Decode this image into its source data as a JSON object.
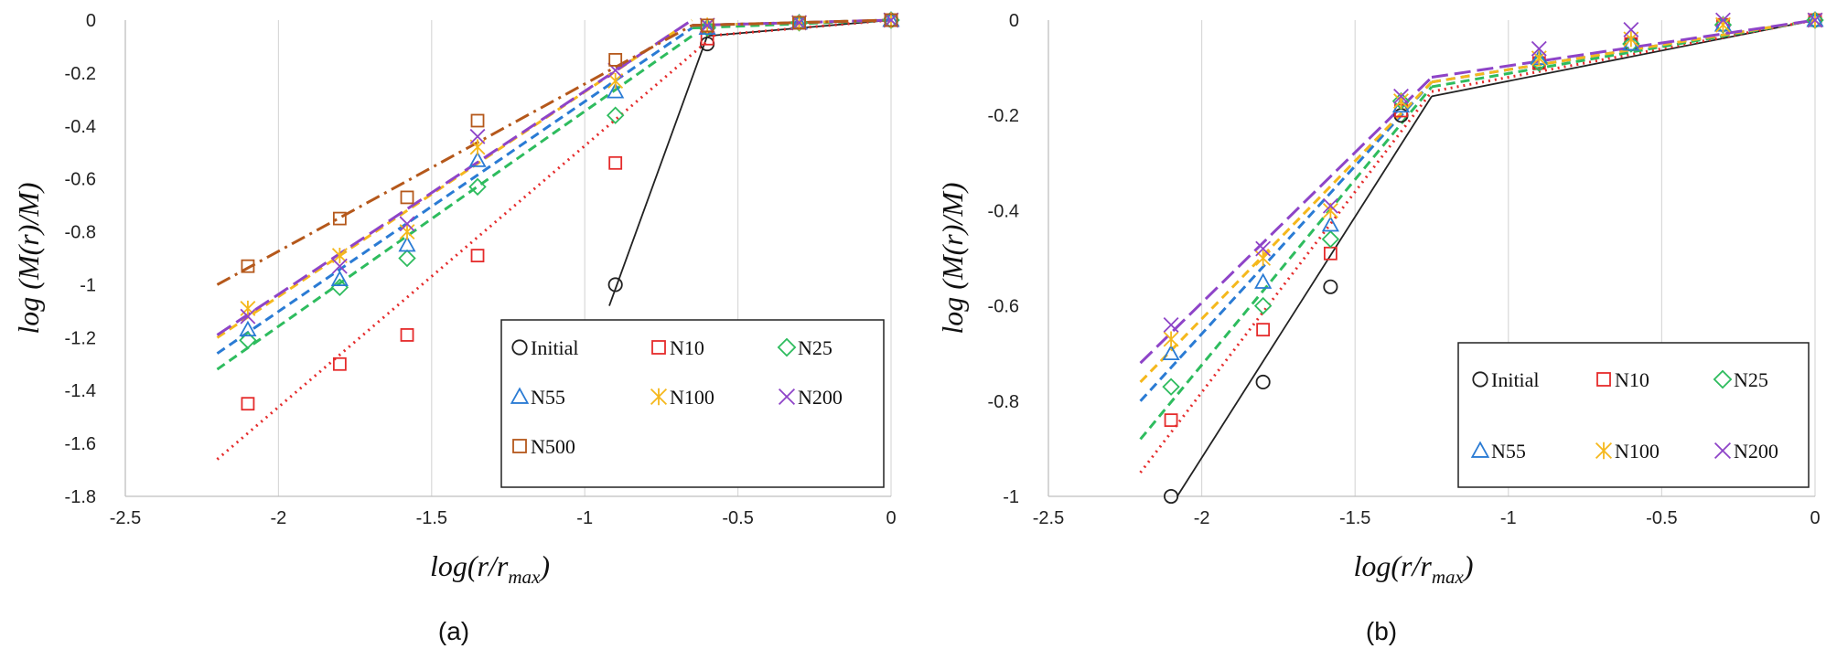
{
  "chart_data": [
    {
      "type": "scatter",
      "caption": "(a)",
      "xlabel": "log(r/r",
      "xlabel_sub": "max",
      "xlabel_tail": ")",
      "ylabel": "log (M(r)/M)",
      "xlim": [
        -2.5,
        0
      ],
      "ylim": [
        -1.8,
        0
      ],
      "xticks": [
        -2.5,
        -2,
        -1.5,
        -1,
        -0.5,
        0
      ],
      "xtick_labels": [
        "-2.5",
        "-2",
        "-1.5",
        "-1",
        "-0.5",
        "0"
      ],
      "yticks": [
        0,
        -0.2,
        -0.4,
        -0.6,
        -0.8,
        -1,
        -1.2,
        -1.4,
        -1.6,
        -1.8
      ],
      "ytick_labels": [
        "0",
        "-0.2",
        "-0.4",
        "-0.6",
        "-0.8",
        "-1",
        "-1.2",
        "-1.4",
        "-1.6",
        "-1.8"
      ],
      "grid": "vertical",
      "legend_position": "lower-right",
      "series": [
        {
          "name": "Initial",
          "color": "#222222",
          "marker": "circle",
          "x": [
            -0.9,
            -0.6,
            0
          ],
          "y": [
            -1.0,
            -0.09,
            0
          ],
          "fits": [
            {
              "x": [
                -0.92,
                -0.6
              ],
              "y": [
                -1.08,
                -0.06
              ],
              "style": "solid"
            },
            {
              "x": [
                -0.6,
                0
              ],
              "y": [
                -0.06,
                0
              ],
              "style": "solid"
            }
          ]
        },
        {
          "name": "N10",
          "color": "#e52b2b",
          "marker": "square",
          "x": [
            -2.1,
            -1.8,
            -1.58,
            -1.35,
            -0.9,
            -0.6,
            -0.3,
            0
          ],
          "y": [
            -1.45,
            -1.3,
            -1.19,
            -0.89,
            -0.54,
            -0.07,
            -0.01,
            0
          ],
          "fits": [
            {
              "x": [
                -2.2,
                -0.6
              ],
              "y": [
                -1.66,
                -0.08
              ],
              "style": "dotted"
            },
            {
              "x": [
                -0.6,
                0
              ],
              "y": [
                -0.06,
                0
              ],
              "style": "dotted"
            }
          ]
        },
        {
          "name": "N25",
          "color": "#2ebc5e",
          "marker": "diamond",
          "x": [
            -2.1,
            -1.8,
            -1.58,
            -1.35,
            -0.9,
            -0.6,
            -0.3,
            0
          ],
          "y": [
            -1.21,
            -1.01,
            -0.9,
            -0.63,
            -0.36,
            -0.03,
            -0.01,
            0
          ],
          "fits": [
            {
              "x": [
                -2.2,
                -0.65
              ],
              "y": [
                -1.32,
                -0.06
              ],
              "style": "dashed"
            },
            {
              "x": [
                -0.65,
                0
              ],
              "y": [
                -0.03,
                0
              ],
              "style": "dashed"
            }
          ]
        },
        {
          "name": "N55",
          "color": "#2a7bd4",
          "marker": "triangle",
          "x": [
            -2.1,
            -1.8,
            -1.58,
            -1.35,
            -0.9,
            -0.6,
            -0.3,
            0
          ],
          "y": [
            -1.17,
            -0.98,
            -0.85,
            -0.53,
            -0.27,
            -0.03,
            -0.01,
            0
          ],
          "fits": [
            {
              "x": [
                -2.2,
                -0.65
              ],
              "y": [
                -1.26,
                -0.03
              ],
              "style": "dashed"
            },
            {
              "x": [
                -0.65,
                0
              ],
              "y": [
                -0.02,
                0
              ],
              "style": "dashed"
            }
          ]
        },
        {
          "name": "N100",
          "color": "#f5b81c",
          "marker": "asterisk",
          "x": [
            -2.1,
            -1.8,
            -1.58,
            -1.35,
            -0.9,
            -0.6,
            -0.3,
            0
          ],
          "y": [
            -1.09,
            -0.89,
            -0.8,
            -0.48,
            -0.23,
            -0.02,
            -0.01,
            0
          ],
          "fits": [
            {
              "x": [
                -2.2,
                -0.65
              ],
              "y": [
                -1.2,
                0.0
              ],
              "style": "dashed"
            },
            {
              "x": [
                -0.65,
                0
              ],
              "y": [
                -0.02,
                0
              ],
              "style": "dashed"
            }
          ]
        },
        {
          "name": "N200",
          "color": "#8e44c8",
          "marker": "cross",
          "x": [
            -2.1,
            -1.8,
            -1.58,
            -1.35,
            -0.9,
            -0.6,
            -0.3,
            0
          ],
          "y": [
            -1.12,
            -0.93,
            -0.77,
            -0.44,
            -0.19,
            -0.02,
            -0.01,
            0
          ],
          "fits": [
            {
              "x": [
                -2.2,
                -0.65
              ],
              "y": [
                -1.19,
                0.0
              ],
              "style": "longdash"
            },
            {
              "x": [
                -0.65,
                0
              ],
              "y": [
                -0.02,
                0
              ],
              "style": "longdash"
            }
          ]
        },
        {
          "name": "N500",
          "color": "#b5581b",
          "marker": "square",
          "x": [
            -2.1,
            -1.8,
            -1.58,
            -1.35,
            -0.9,
            -0.6,
            -0.3,
            0
          ],
          "y": [
            -0.93,
            -0.75,
            -0.67,
            -0.38,
            -0.15,
            -0.02,
            -0.01,
            0
          ],
          "fits": [
            {
              "x": [
                -2.2,
                -0.65
              ],
              "y": [
                -1.0,
                -0.02
              ],
              "style": "dashdot"
            },
            {
              "x": [
                -0.65,
                0
              ],
              "y": [
                -0.02,
                0
              ],
              "style": "dashdot"
            }
          ]
        }
      ]
    },
    {
      "type": "scatter",
      "caption": "(b)",
      "xlabel": "log(r/r",
      "xlabel_sub": "max",
      "xlabel_tail": ")",
      "ylabel": "log (M(r)/M)",
      "xlim": [
        -2.5,
        0
      ],
      "ylim": [
        -1,
        0
      ],
      "xticks": [
        -2.5,
        -2,
        -1.5,
        -1,
        -0.5,
        0
      ],
      "xtick_labels": [
        "-2.5",
        "-2",
        "-1.5",
        "-1",
        "-0.5",
        "0"
      ],
      "yticks": [
        0,
        -0.2,
        -0.4,
        -0.6,
        -0.8,
        -1
      ],
      "ytick_labels": [
        "0",
        "-0.2",
        "-0.4",
        "-0.6",
        "-0.8",
        "-1"
      ],
      "grid": "vertical",
      "legend_position": "lower-right",
      "series": [
        {
          "name": "Initial",
          "color": "#222222",
          "marker": "circle",
          "x": [
            -2.1,
            -1.8,
            -1.58,
            -1.35,
            -0.9,
            -0.6,
            0
          ],
          "y": [
            -1.0,
            -0.76,
            -0.56,
            -0.2,
            -0.09,
            -0.05,
            0
          ],
          "fits": [
            {
              "x": [
                -2.08,
                -1.25
              ],
              "y": [
                -1.0,
                -0.16
              ],
              "style": "solid"
            },
            {
              "x": [
                -1.25,
                0
              ],
              "y": [
                -0.16,
                0
              ],
              "style": "solid"
            }
          ]
        },
        {
          "name": "N10",
          "color": "#e52b2b",
          "marker": "square",
          "x": [
            -2.1,
            -1.8,
            -1.58,
            -1.35,
            -0.9,
            -0.6,
            -0.3,
            0
          ],
          "y": [
            -0.84,
            -0.65,
            -0.49,
            -0.19,
            -0.09,
            -0.05,
            -0.01,
            0
          ],
          "fits": [
            {
              "x": [
                -2.2,
                -1.25
              ],
              "y": [
                -0.95,
                -0.15
              ],
              "style": "dotted"
            },
            {
              "x": [
                -1.25,
                0
              ],
              "y": [
                -0.15,
                0
              ],
              "style": "dotted"
            }
          ]
        },
        {
          "name": "N25",
          "color": "#2ebc5e",
          "marker": "diamond",
          "x": [
            -2.1,
            -1.8,
            -1.58,
            -1.35,
            -0.9,
            -0.6,
            -0.3,
            0
          ],
          "y": [
            -0.77,
            -0.6,
            -0.46,
            -0.17,
            -0.09,
            -0.05,
            -0.01,
            0
          ],
          "fits": [
            {
              "x": [
                -2.2,
                -1.25
              ],
              "y": [
                -0.88,
                -0.14
              ],
              "style": "dashed"
            },
            {
              "x": [
                -1.25,
                0
              ],
              "y": [
                -0.14,
                0
              ],
              "style": "dashed"
            }
          ]
        },
        {
          "name": "N55",
          "color": "#2a7bd4",
          "marker": "triangle",
          "x": [
            -2.1,
            -1.8,
            -1.58,
            -1.35,
            -0.9,
            -0.6,
            -0.3,
            0
          ],
          "y": [
            -0.7,
            -0.55,
            -0.43,
            -0.18,
            -0.08,
            -0.05,
            -0.01,
            0
          ],
          "fits": [
            {
              "x": [
                -2.2,
                -1.25
              ],
              "y": [
                -0.8,
                -0.13
              ],
              "style": "dashed"
            },
            {
              "x": [
                -1.25,
                0
              ],
              "y": [
                -0.13,
                0
              ],
              "style": "dashed"
            }
          ]
        },
        {
          "name": "N100",
          "color": "#f5b81c",
          "marker": "asterisk",
          "x": [
            -2.1,
            -1.8,
            -1.58,
            -1.35,
            -0.9,
            -0.6,
            -0.3,
            0
          ],
          "y": [
            -0.67,
            -0.5,
            -0.4,
            -0.17,
            -0.08,
            -0.04,
            -0.01,
            0
          ],
          "fits": [
            {
              "x": [
                -2.2,
                -1.25
              ],
              "y": [
                -0.76,
                -0.13
              ],
              "style": "dashed"
            },
            {
              "x": [
                -1.25,
                0
              ],
              "y": [
                -0.13,
                0
              ],
              "style": "dashed"
            }
          ]
        },
        {
          "name": "N200",
          "color": "#8e44c8",
          "marker": "cross",
          "x": [
            -2.1,
            -1.8,
            -1.58,
            -1.35,
            -0.9,
            -0.6,
            -0.3,
            0
          ],
          "y": [
            -0.64,
            -0.48,
            -0.39,
            -0.16,
            -0.06,
            -0.02,
            0.0,
            0
          ],
          "fits": [
            {
              "x": [
                -2.2,
                -1.25
              ],
              "y": [
                -0.72,
                -0.12
              ],
              "style": "longdash"
            },
            {
              "x": [
                -1.25,
                0
              ],
              "y": [
                -0.12,
                0
              ],
              "style": "longdash"
            }
          ]
        }
      ]
    }
  ]
}
